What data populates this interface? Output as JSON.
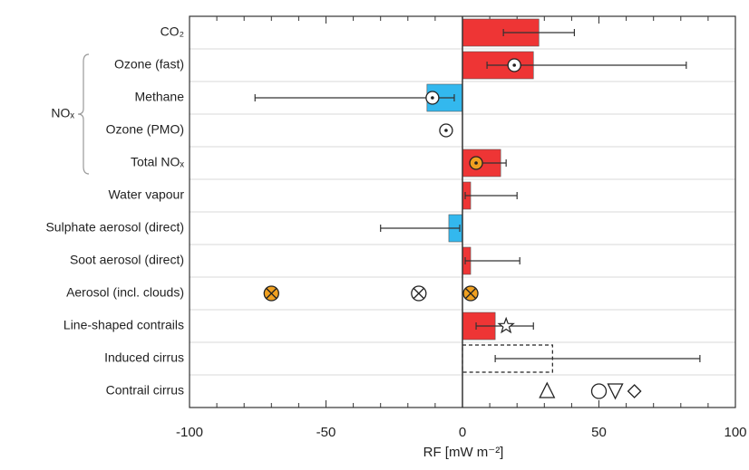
{
  "chart_data": {
    "type": "bar",
    "orientation": "horizontal",
    "xlabel": "RF [mW m⁻²]",
    "categories": [
      "CO₂",
      "Ozone (fast)",
      "Methane",
      "Ozone (PMO)",
      "Total NOₓ",
      "Water vapour",
      "Sulphate aerosol (direct)",
      "Soot aerosol (direct)",
      "Aerosol (incl. clouds)",
      "Line-shaped contrails",
      "Induced cirrus",
      "Contrail cirrus"
    ],
    "values": [
      28,
      26,
      -13,
      null,
      14,
      3,
      -5,
      3,
      null,
      12,
      33,
      null
    ],
    "error_low": [
      15,
      9,
      -76,
      null,
      5,
      1,
      -30,
      1,
      null,
      5,
      12,
      null
    ],
    "error_high": [
      41,
      82,
      -3,
      null,
      16,
      20,
      -1,
      21,
      null,
      26,
      87,
      null
    ],
    "dashed": [
      false,
      false,
      false,
      false,
      false,
      false,
      false,
      false,
      false,
      false,
      true,
      false
    ],
    "positive_color": "#ee3535",
    "negative_color": "#33b8ee",
    "markers": [
      {
        "row": 1,
        "value": 19,
        "symbol": "circle-dot",
        "color": "#ffffff"
      },
      {
        "row": 2,
        "value": -11,
        "symbol": "circle-dot",
        "color": "#ffffff"
      },
      {
        "row": 3,
        "value": -6,
        "symbol": "circle-dot",
        "color": "#ffffff"
      },
      {
        "row": 4,
        "value": 5,
        "symbol": "circle-dot",
        "color": "#f0a020"
      },
      {
        "row": 8,
        "value": -70,
        "symbol": "circle-cross",
        "color": "#f0a020"
      },
      {
        "row": 8,
        "value": -16,
        "symbol": "circle-cross",
        "color": "#ffffff"
      },
      {
        "row": 8,
        "value": 3,
        "symbol": "circle-cross",
        "color": "#f0a020"
      },
      {
        "row": 9,
        "value": 16,
        "symbol": "star",
        "color": "#ffffff"
      },
      {
        "row": 11,
        "value": 31,
        "symbol": "triangle",
        "color": "#ffffff"
      },
      {
        "row": 11,
        "value": 50,
        "symbol": "circle",
        "color": "#ffffff"
      },
      {
        "row": 11,
        "value": 56,
        "symbol": "triangle-down",
        "color": "#ffffff"
      },
      {
        "row": 11,
        "value": 63,
        "symbol": "diamond",
        "color": "#ffffff"
      }
    ],
    "group": {
      "label": "NOₓ",
      "rows": [
        1,
        4
      ]
    },
    "xlim": [
      -100,
      100
    ],
    "xticks": [
      -100,
      -50,
      0,
      50,
      100
    ],
    "minor_xticks": [
      -90,
      -80,
      -70,
      -60,
      -40,
      -30,
      -20,
      -10,
      10,
      20,
      30,
      40,
      60,
      70,
      80,
      90
    ]
  }
}
